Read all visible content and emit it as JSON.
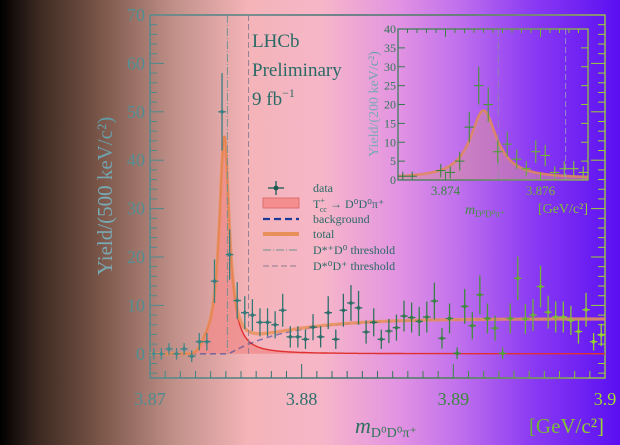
{
  "chart_data": [
    {
      "type": "scatter",
      "title": "",
      "experiment_label": "LHCb",
      "status_label": "Preliminary",
      "lumi_label": "9",
      "lumi_unit": "fb",
      "lumi_exp": "−1",
      "xlabel": "m",
      "xlabel_sub": "D⁰D⁰π⁺",
      "xunit": "[GeV/c²]",
      "ylabel": "Yield/(500 keV/c²)",
      "xlim": [
        3.87,
        3.9
      ],
      "ylim": [
        -5,
        70
      ],
      "xticks": [
        "3.87",
        "3.88",
        "3.89",
        "3.9"
      ],
      "xtick_values": [
        3.87,
        3.88,
        3.89,
        3.9
      ],
      "yticks": [
        "0",
        "10",
        "20",
        "30",
        "40",
        "50",
        "60",
        "70"
      ],
      "ytick_values": [
        0,
        10,
        20,
        30,
        40,
        50,
        60,
        70
      ],
      "bin_width": 0.0005,
      "data": {
        "values": [
          0,
          0,
          1,
          0,
          1,
          -0.5,
          2.5,
          2.5,
          15,
          50,
          20.5,
          11,
          8.5,
          8,
          6.5,
          6.5,
          6,
          9,
          3.5,
          3.5,
          3,
          5.5,
          3.5,
          8.5,
          3,
          9,
          10.5,
          9.5,
          4.5,
          6.5,
          3,
          4.7,
          5.4,
          7.8,
          7.5,
          6.7,
          7.6,
          10.9,
          3.2,
          7.3,
          0.1,
          9.8,
          5.8,
          12.2,
          7.3,
          5.3,
          0.1,
          7.3,
          15.6,
          7.2,
          8.0,
          13.9,
          8.6,
          7.6,
          7.6,
          6.9,
          4.6,
          9.1,
          2.5,
          3.9
        ],
        "yerr": [
          1.2,
          1.2,
          1.2,
          1.2,
          1.2,
          1.2,
          1.8,
          1.8,
          4.5,
          8,
          5.2,
          3.8,
          3.4,
          3.3,
          2.9,
          2.9,
          2.8,
          3.4,
          2.2,
          2.2,
          2,
          2.7,
          2.2,
          3.4,
          2,
          3.4,
          3.7,
          3.5,
          2.4,
          2.9,
          2,
          2.5,
          2.7,
          3.2,
          3.1,
          3,
          3.2,
          3.8,
          2.1,
          3.1,
          1.2,
          3.6,
          2.8,
          4,
          3.1,
          2.6,
          1.2,
          3.1,
          4.5,
          3.1,
          3.3,
          4.3,
          3.4,
          3.2,
          3.2,
          3,
          2.5,
          3.5,
          1.8,
          2.3
        ]
      },
      "model": {
        "signal_peak": 45,
        "signal_mass": 3.8749,
        "signal_width": 0.0004,
        "signal_onset": 3.8736,
        "background_plateau": 7.2,
        "background_threshold": 3.8752,
        "background_scale": 0.004
      },
      "thresholds": {
        "dstarplus_d0": 3.8751,
        "dstar0_dplus": 3.8765
      },
      "legend": {
        "placement": "center",
        "data": "data",
        "signal_T": "T",
        "signal_sup": "+",
        "signal_sub": "cc",
        "signal_rest": " → D⁰D⁰π⁺",
        "background": "background",
        "total": "total",
        "thr1": "D*⁺D⁰ threshold",
        "thr2": "D*⁰D⁺ threshold"
      },
      "colors": {
        "signal_fill": "#f08a8a",
        "signal_line": "#e03030",
        "background": "#1a3a9a",
        "total": "#e8905a",
        "data": "#1a5a50"
      }
    },
    {
      "type": "scatter",
      "name": "inset",
      "xlabel": "m",
      "xlabel_sub": "D⁰D⁰π⁺",
      "xunit": "[GeV/c²]",
      "ylabel": "Yield/(200 keV/c²)",
      "xlim": [
        3.873,
        3.877
      ],
      "ylim": [
        0,
        40
      ],
      "xticks": [
        "3.874",
        "3.876"
      ],
      "xtick_values": [
        3.874,
        3.876
      ],
      "yticks": [
        "0",
        "5",
        "10",
        "15",
        "20",
        "25",
        "30",
        "35",
        "40"
      ],
      "ytick_values": [
        0,
        5,
        10,
        15,
        20,
        25,
        30,
        35,
        40
      ],
      "data": {
        "x": [
          3.8731,
          3.8733,
          3.8739,
          3.8741,
          3.8743,
          3.8745,
          3.8747,
          3.8749,
          3.8751,
          3.8753,
          3.8755,
          3.8757,
          3.8759,
          3.8761,
          3.8763,
          3.8765,
          3.8767,
          3.8769
        ],
        "values": [
          1,
          1,
          2.5,
          2,
          5,
          14,
          25,
          20,
          7.5,
          9.5,
          5.5,
          3,
          7.5,
          6.5,
          2,
          3,
          3,
          2
        ],
        "yerr": [
          1.2,
          1.2,
          1.8,
          1.6,
          2.5,
          4,
          5,
          4.6,
          3,
          3.3,
          2.6,
          2,
          3,
          2.8,
          1.6,
          2,
          2,
          1.6
        ]
      },
      "model": {
        "signal_peak": 18,
        "signal_mass": 3.8748,
        "signal_width": 0.00034
      },
      "thresholds": {
        "dstarplus_d0": 3.87511,
        "dstar0_dplus": 3.87653
      }
    }
  ]
}
